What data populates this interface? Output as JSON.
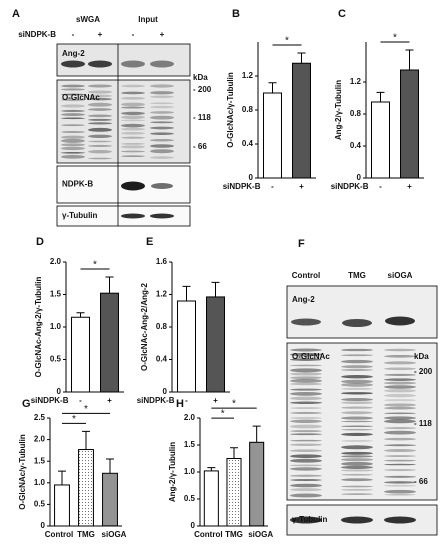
{
  "chart_data": [
    {
      "type": "bar",
      "panel": "B",
      "ylabel": "O-GlcNAc/γ-Tubulin",
      "xlabel": "siNDPK-B",
      "categories": [
        "-",
        "+"
      ],
      "values": [
        1.0,
        1.35
      ],
      "errors": [
        0.12,
        0.12
      ],
      "patterns": [
        "white",
        "gray"
      ],
      "ylim": [
        0,
        1.6
      ],
      "yticks": [
        0,
        0.4,
        0.8,
        1.2
      ],
      "significance": [
        {
          "from": 0,
          "to": 1,
          "label": "*"
        }
      ]
    },
    {
      "type": "bar",
      "panel": "C",
      "ylabel": "Ang-2/γ-Tubulin",
      "xlabel": "siNDPK-B",
      "categories": [
        "-",
        "+"
      ],
      "values": [
        0.95,
        1.35
      ],
      "errors": [
        0.12,
        0.25
      ],
      "patterns": [
        "white",
        "gray"
      ],
      "ylim": [
        0,
        1.7
      ],
      "yticks": [
        0,
        0.4,
        0.8,
        1.2
      ],
      "significance": [
        {
          "from": 0,
          "to": 1,
          "label": "*"
        }
      ]
    },
    {
      "type": "bar",
      "panel": "D",
      "ylabel": "O-GlcNAc-Ang-2/γ-Tubulin",
      "xlabel": "siNDPK-B",
      "categories": [
        "-",
        "+"
      ],
      "values": [
        1.15,
        1.52
      ],
      "errors": [
        0.07,
        0.25
      ],
      "patterns": [
        "white",
        "gray"
      ],
      "ylim": [
        0,
        2.0
      ],
      "yticks": [
        0,
        0.5,
        {
          "value": 1.0,
          "label": "1.0"
        },
        1.5,
        {
          "value": 2.0,
          "label": "2.0"
        }
      ],
      "significance": [
        {
          "from": 0,
          "to": 1,
          "label": "*"
        }
      ]
    },
    {
      "type": "bar",
      "panel": "E",
      "ylabel": "O-GlcNAc-Ang-2/Ang-2",
      "xlabel": "siNDPK-B",
      "categories": [
        "-",
        "+"
      ],
      "values": [
        1.12,
        1.17
      ],
      "errors": [
        0.18,
        0.18
      ],
      "patterns": [
        "white",
        "gray"
      ],
      "ylim": [
        0,
        1.6
      ],
      "yticks": [
        0,
        0.4,
        0.8,
        1.2,
        1.6
      ],
      "significance": []
    },
    {
      "type": "bar",
      "panel": "G",
      "ylabel": "O-GlcNAc/γ-Tubulin",
      "categories": [
        "Control",
        "TMG",
        "siOGA"
      ],
      "values": [
        0.95,
        1.77,
        1.22
      ],
      "errors": [
        0.32,
        0.42,
        0.33
      ],
      "patterns": [
        "white",
        "dots",
        "dense"
      ],
      "ylim": [
        0,
        2.5
      ],
      "yticks": [
        0,
        0.5,
        {
          "value": 1.0,
          "label": "1.0"
        },
        1.5,
        {
          "value": 2.0,
          "label": "2.0"
        },
        2.5
      ],
      "significance": [
        {
          "from": 0,
          "to": 1,
          "label": "*"
        },
        {
          "from": 0,
          "to": 2,
          "label": "*"
        }
      ]
    },
    {
      "type": "bar",
      "panel": "H",
      "ylabel": "Ang-2/γ-Tubulin",
      "categories": [
        "Control",
        "TMG",
        "siOGA"
      ],
      "values": [
        1.02,
        1.25,
        1.55
      ],
      "errors": [
        0.06,
        0.2,
        0.3
      ],
      "patterns": [
        "white",
        "dots",
        "dense"
      ],
      "ylim": [
        0,
        2.0
      ],
      "yticks": [
        0,
        0.5,
        {
          "value": 1.0,
          "label": "1.0"
        },
        1.5,
        {
          "value": 2.0,
          "label": "2.0"
        }
      ],
      "significance": [
        {
          "from": 0,
          "to": 1,
          "label": "*"
        },
        {
          "from": 0,
          "to": 2,
          "label": "*"
        }
      ]
    }
  ],
  "blots": [
    {
      "panel": "A",
      "columns": [
        "sWGA",
        "Input"
      ],
      "treatment": "siNDPK-B",
      "lanes": [
        "-",
        "+",
        "-",
        "+"
      ],
      "rows": [
        "Ang-2",
        "O-GlcNAc",
        "NDPK-B",
        "γ-Tubulin"
      ],
      "markers": [
        "kDa",
        "- 200",
        "- 118",
        "- 66"
      ]
    },
    {
      "panel": "F",
      "lanes": [
        "Control",
        "TMG",
        "siOGA"
      ],
      "rows": [
        "Ang-2",
        "O-GlcNAc",
        "γ-Tubulin"
      ],
      "markers": [
        "kDa",
        "- 200",
        "- 118",
        "- 66"
      ]
    }
  ]
}
